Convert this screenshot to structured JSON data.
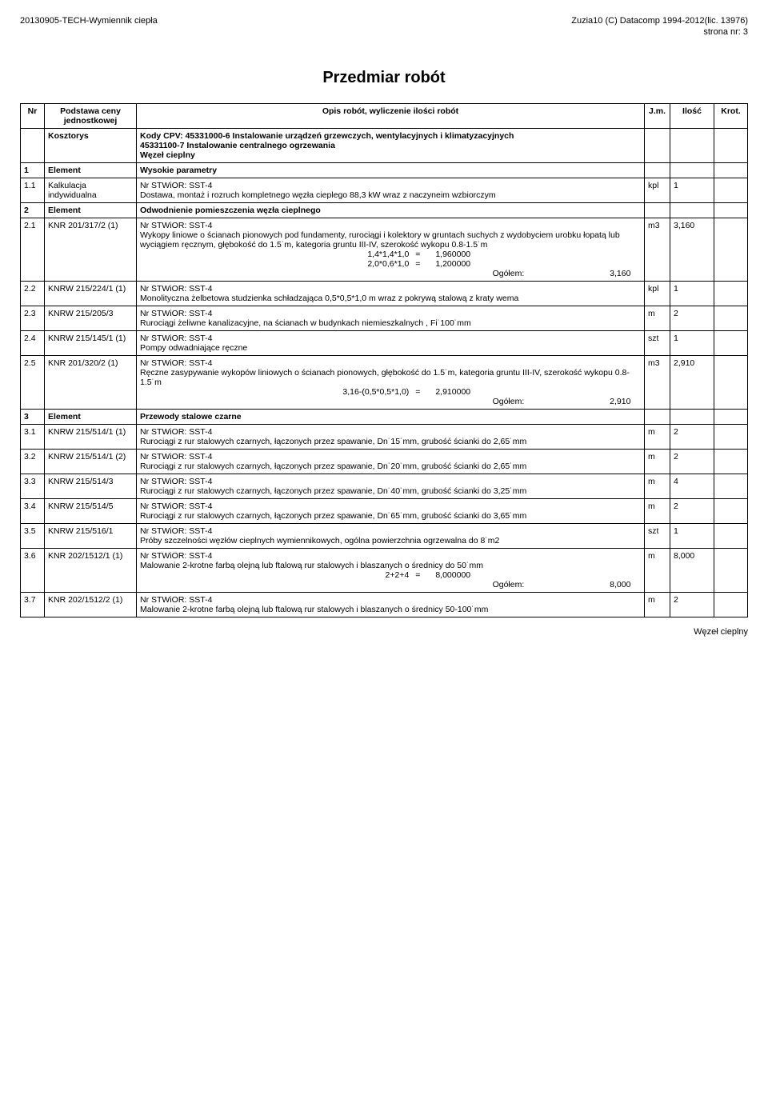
{
  "header": {
    "left": "20130905-TECH-Wymiennik ciepła",
    "right": "Zuzia10 (C) Datacomp 1994-2012(lic. 13976)",
    "page": "strona nr:     3"
  },
  "title": "Przedmiar robót",
  "columns": {
    "nr": "Nr",
    "podstawa": "Podstawa ceny jednostkowej",
    "opis": "Opis robót, wyliczenie ilości robót",
    "jm": "J.m.",
    "ilosc": "Ilość",
    "krot": "Krot."
  },
  "rows": [
    {
      "type": "kosztorys",
      "nr": "",
      "podstawa": "Kosztorys",
      "opis_lines": [
        "Kody CPV: 45331000-6  Instalowanie urządzeń grzewczych, wentylacyjnych i klimatyzacyjnych",
        "45331100-7  Instalowanie centralnego ogrzewania",
        "Węzeł cieplny"
      ],
      "jm": "",
      "ilosc": "",
      "krot": "",
      "bold": true
    },
    {
      "type": "element",
      "nr": "1",
      "podstawa": "Element",
      "opis": "Wysokie parametry",
      "jm": "",
      "ilosc": "",
      "krot": "",
      "bold": true
    },
    {
      "type": "item",
      "nr": "1.1",
      "podstawa": "Kalkulacja indywidualna",
      "opis_lines": [
        "Nr STWiOR: SST-4",
        "Dostawa, montaż i rozruch kompletnego węzła cieplego 88,3 kW wraz z naczyneim wzbiorczym"
      ],
      "jm": "kpl",
      "ilosc": "1",
      "krot": ""
    },
    {
      "type": "element",
      "nr": "2",
      "podstawa": "Element",
      "opis": "Odwodnienie pomieszczenia węzła cieplnego",
      "jm": "",
      "ilosc": "",
      "krot": "",
      "bold": true
    },
    {
      "type": "item",
      "nr": "2.1",
      "podstawa": "KNR 201/317/2 (1)",
      "opis_lines": [
        "Nr STWiOR: SST-4",
        "Wykopy liniowe o ścianach pionowych pod fundamenty, rurociągi i kolektory w gruntach suchych z wydobyciem urobku łopatą lub wyciągiem ręcznym, głębokość do 1.5˙m, kategoria gruntu III-IV, szerokość wykopu 0.8-1.5˙m"
      ],
      "calcs": [
        {
          "expr": "1,4*1,4*1,0",
          "eq": "=",
          "val": "1,960000"
        },
        {
          "expr": "2,0*0,6*1,0",
          "eq": "=",
          "val": "1,200000"
        }
      ],
      "ogolem": {
        "label": "Ogółem:",
        "val": "3,160"
      },
      "jm": "m3",
      "ilosc": "3,160",
      "krot": ""
    },
    {
      "type": "item",
      "nr": "2.2",
      "podstawa": "KNRW 215/224/1 (1)",
      "opis_lines": [
        "Nr STWiOR: SST-4",
        "Monolityczna żelbetowa studzienka schładzająca 0,5*0,5*1,0 m wraz z pokrywą stalową z kraty wema"
      ],
      "jm": "kpl",
      "ilosc": "1",
      "krot": ""
    },
    {
      "type": "item",
      "nr": "2.3",
      "podstawa": "KNRW 215/205/3",
      "opis_lines": [
        "Nr STWiOR: SST-4",
        "Rurociągi żeliwne kanalizacyjne, na ścianach w budynkach niemieszkalnych , Fi˙100˙mm"
      ],
      "jm": "m",
      "ilosc": "2",
      "krot": ""
    },
    {
      "type": "item",
      "nr": "2.4",
      "podstawa": "KNRW 215/145/1 (1)",
      "opis_lines": [
        "Nr STWiOR: SST-4",
        "Pompy odwadniające ręczne"
      ],
      "jm": "szt",
      "ilosc": "1",
      "krot": ""
    },
    {
      "type": "item",
      "nr": "2.5",
      "podstawa": "KNR 201/320/2 (1)",
      "opis_lines": [
        "Nr STWiOR: SST-4",
        "Ręczne zasypywanie wykopów liniowych o ścianach pionowych, głębokość do 1.5˙m, kategoria gruntu III-IV, szerokość wykopu 0.8-1.5˙m"
      ],
      "calcs": [
        {
          "expr": "3,16-(0,5*0,5*1,0)",
          "eq": "=",
          "val": "2,910000"
        }
      ],
      "ogolem": {
        "label": "Ogółem:",
        "val": "2,910"
      },
      "jm": "m3",
      "ilosc": "2,910",
      "krot": ""
    },
    {
      "type": "element",
      "nr": "3",
      "podstawa": "Element",
      "opis": "Przewody stalowe czarne",
      "jm": "",
      "ilosc": "",
      "krot": "",
      "bold": true
    },
    {
      "type": "item",
      "nr": "3.1",
      "podstawa": "KNRW 215/514/1 (1)",
      "opis_lines": [
        "Nr STWiOR: SST-4",
        "Rurociągi z rur stalowych czarnych, łączonych przez spawanie, Dn˙15˙mm, grubość ścianki do 2,65˙mm"
      ],
      "jm": "m",
      "ilosc": "2",
      "krot": ""
    },
    {
      "type": "item",
      "nr": "3.2",
      "podstawa": "KNRW 215/514/1 (2)",
      "opis_lines": [
        "Nr STWiOR: SST-4",
        "Rurociągi z rur stalowych czarnych, łączonych przez spawanie, Dn˙20˙mm, grubość ścianki do 2,65˙mm"
      ],
      "jm": "m",
      "ilosc": "2",
      "krot": ""
    },
    {
      "type": "item",
      "nr": "3.3",
      "podstawa": "KNRW 215/514/3",
      "opis_lines": [
        "Nr STWiOR: SST-4",
        "Rurociągi z rur stalowych czarnych, łączonych przez spawanie, Dn˙40˙mm, grubość ścianki do 3,25˙mm"
      ],
      "jm": "m",
      "ilosc": "4",
      "krot": ""
    },
    {
      "type": "item",
      "nr": "3.4",
      "podstawa": "KNRW 215/514/5",
      "opis_lines": [
        "Nr STWiOR: SST-4",
        "Rurociągi z rur stalowych czarnych, łączonych przez spawanie, Dn˙65˙mm, grubość ścianki do 3,65˙mm"
      ],
      "jm": "m",
      "ilosc": "2",
      "krot": ""
    },
    {
      "type": "item",
      "nr": "3.5",
      "podstawa": "KNRW 215/516/1",
      "opis_lines": [
        "Nr STWiOR: SST-4",
        "Próby szczelności węzłów cieplnych wymiennikowych, ogólna powierzchnia ogrzewalna do 8˙m2"
      ],
      "jm": "szt",
      "ilosc": "1",
      "krot": ""
    },
    {
      "type": "item",
      "nr": "3.6",
      "podstawa": "KNR 202/1512/1 (1)",
      "opis_lines": [
        "Nr STWiOR: SST-4",
        "Malowanie 2-krotne farbą olejną lub ftalową rur stalowych i blaszanych o średnicy do 50˙mm"
      ],
      "calcs": [
        {
          "expr": "2+2+4",
          "eq": "=",
          "val": "8,000000"
        }
      ],
      "ogolem": {
        "label": "Ogółem:",
        "val": "8,000"
      },
      "jm": "m",
      "ilosc": "8,000",
      "krot": ""
    },
    {
      "type": "item",
      "nr": "3.7",
      "podstawa": "KNR 202/1512/2 (1)",
      "opis_lines": [
        "Nr STWiOR: SST-4",
        "Malowanie 2-krotne farbą olejną lub ftalową rur stalowych i blaszanych o średnicy 50-100˙mm"
      ],
      "jm": "m",
      "ilosc": "2",
      "krot": ""
    }
  ],
  "footer": "Węzeł cieplny"
}
